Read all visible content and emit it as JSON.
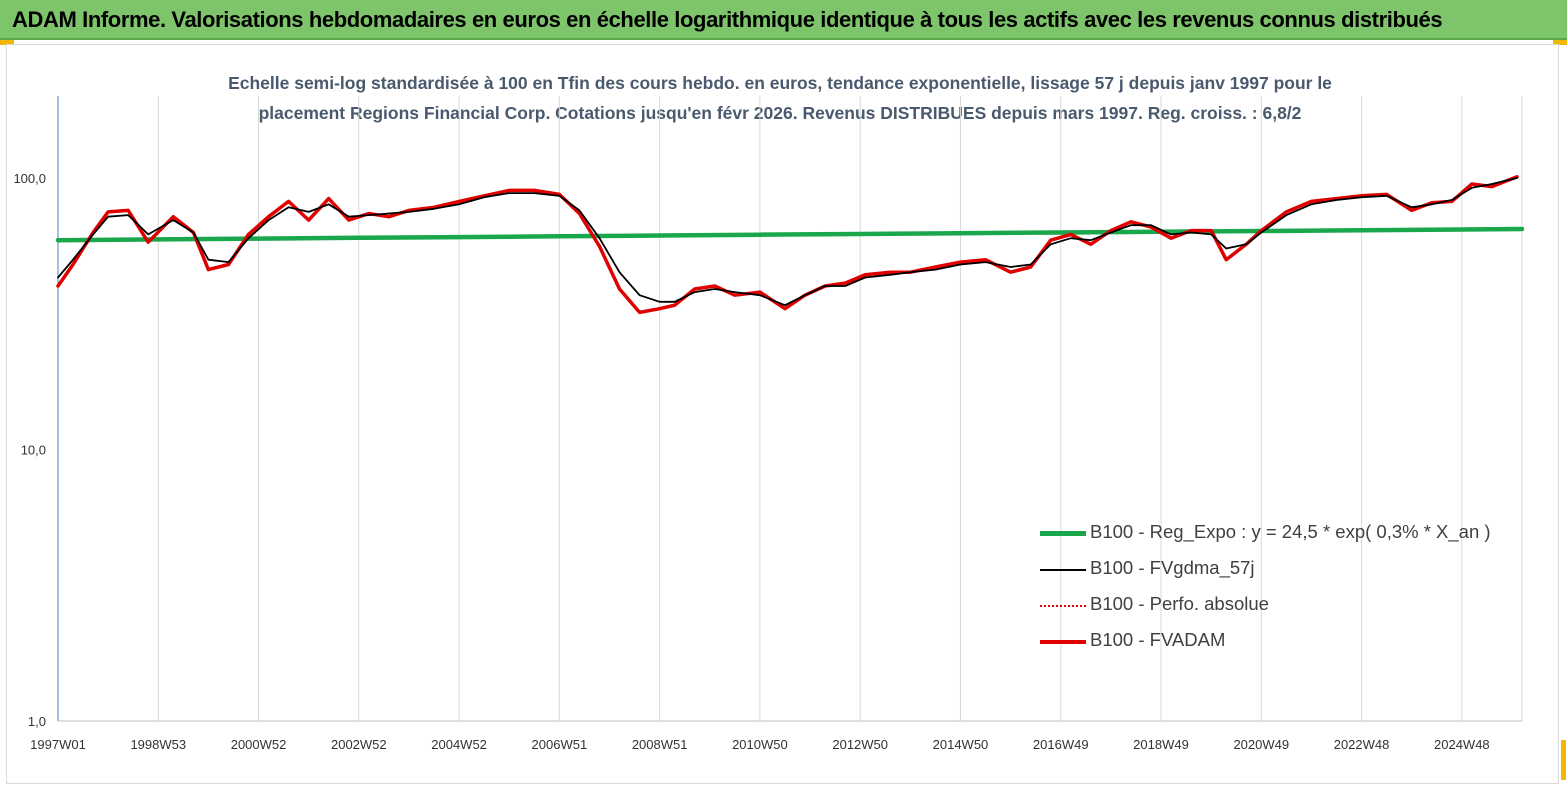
{
  "banner": {
    "title": "ADAM Informe. Valorisations hebdomadaires en euros en échelle logarithmique identique à tous les actifs avec les revenus connus distribués"
  },
  "colors": {
    "banner_bg": "#7dc46a",
    "corner_accent": "#f2b705",
    "reg_expo": "#1aa64a",
    "fvgdma": "#000000",
    "perfo": "#e00000",
    "fvadam": "#e00000",
    "grid": "#d9d9d9",
    "axis": "#4f81bd"
  },
  "chart_data": {
    "type": "line",
    "title_line1": "Echelle semi-log standardisée à 100 en Tfin des cours hebdo. en euros, tendance exponentielle, lissage 57 j depuis janv 1997 pour le",
    "title_line2": "placement Regions Financial Corp. Cotations jusqu'en févr 2026. Revenus DISTRIBUES depuis mars 1997. Reg. croiss. : 6,8/2",
    "y_scale": "log",
    "ylim": [
      1,
      200
    ],
    "y_ticks": [
      {
        "value": 1,
        "label": "1,0"
      },
      {
        "value": 10,
        "label": "10,0"
      },
      {
        "value": 100,
        "label": "100,0"
      }
    ],
    "xlim": [
      1997.0,
      2026.2
    ],
    "x_ticks": [
      {
        "value": 1997.0,
        "label": "1997W01"
      },
      {
        "value": 1999.0,
        "label": "1998W53"
      },
      {
        "value": 2001.0,
        "label": "2000W52"
      },
      {
        "value": 2003.0,
        "label": "2002W52"
      },
      {
        "value": 2005.0,
        "label": "2004W52"
      },
      {
        "value": 2007.0,
        "label": "2006W51"
      },
      {
        "value": 2009.0,
        "label": "2008W51"
      },
      {
        "value": 2011.0,
        "label": "2010W50"
      },
      {
        "value": 2013.0,
        "label": "2012W50"
      },
      {
        "value": 2015.0,
        "label": "2014W50"
      },
      {
        "value": 2017.0,
        "label": "2016W49"
      },
      {
        "value": 2019.0,
        "label": "2018W49"
      },
      {
        "value": 2021.0,
        "label": "2020W49"
      },
      {
        "value": 2023.0,
        "label": "2022W48"
      },
      {
        "value": 2025.0,
        "label": "2024W48"
      }
    ],
    "grid": "vertical",
    "legend_position": "bottom-right",
    "series": [
      {
        "name": "B100 - Reg_Expo : y = 24,5 *  exp( 0,3% *   X_an )",
        "style": "reg",
        "x": [
          1997.0,
          1999.0,
          2001.0,
          2003.0,
          2005.0,
          2007.0,
          2009.0,
          2011.0,
          2013.0,
          2015.0,
          2017.0,
          2019.0,
          2021.0,
          2023.0,
          2025.0,
          2026.2
        ],
        "values": [
          59,
          59.4,
          59.8,
          60.2,
          60.6,
          61,
          61.4,
          61.8,
          62.2,
          62.6,
          63,
          63.4,
          63.8,
          64.2,
          64.6,
          64.9
        ]
      },
      {
        "name": "B100 - FVgdma_57j",
        "style": "smooth",
        "x": [
          1997.0,
          1997.3,
          1997.7,
          1998.0,
          1998.4,
          1998.8,
          1999.3,
          1999.7,
          2000.0,
          2000.4,
          2000.8,
          2001.2,
          2001.6,
          2002.0,
          2002.4,
          2002.8,
          2003.2,
          2003.6,
          2004.0,
          2004.5,
          2005.0,
          2005.5,
          2006.0,
          2006.5,
          2007.0,
          2007.4,
          2007.8,
          2008.2,
          2008.6,
          2009.0,
          2009.3,
          2009.7,
          2010.1,
          2010.5,
          2011.0,
          2011.5,
          2011.9,
          2012.3,
          2012.7,
          2013.1,
          2013.6,
          2014.0,
          2014.5,
          2015.0,
          2015.5,
          2016.0,
          2016.4,
          2016.8,
          2017.2,
          2017.6,
          2018.0,
          2018.4,
          2018.8,
          2019.2,
          2019.6,
          2020.0,
          2020.3,
          2020.7,
          2021.0,
          2021.5,
          2022.0,
          2022.5,
          2023.0,
          2023.5,
          2024.0,
          2024.4,
          2024.8,
          2025.2,
          2025.6,
          2026.1
        ],
        "values": [
          43,
          50,
          62,
          72,
          73,
          62,
          70,
          63,
          50,
          49,
          60,
          70,
          78,
          75,
          80,
          72,
          73,
          74,
          75,
          77,
          80,
          85,
          88,
          88,
          86,
          76,
          60,
          45,
          37,
          35,
          35,
          38,
          39,
          38,
          37,
          34,
          37,
          40,
          40,
          43,
          44,
          45,
          46,
          48,
          49,
          47,
          48,
          57,
          60,
          59,
          63,
          67,
          67,
          62,
          63,
          62,
          55,
          57,
          63,
          73,
          80,
          83,
          85,
          86,
          78,
          80,
          83,
          92,
          95,
          100
        ]
      },
      {
        "name": "B100 - Perfo. absolue",
        "style": "perfo",
        "x": [
          1997.0,
          1997.3,
          1997.7,
          1998.0,
          1998.4,
          1998.8,
          1999.3,
          1999.7,
          2000.0,
          2000.4,
          2000.8,
          2001.2,
          2001.6,
          2002.0,
          2002.4,
          2002.8,
          2003.2,
          2003.6,
          2004.0,
          2004.5,
          2005.0,
          2005.5,
          2006.0,
          2006.5,
          2007.0,
          2007.4,
          2007.8,
          2008.2,
          2008.6,
          2009.0,
          2009.3,
          2009.7,
          2010.1,
          2010.5,
          2011.0,
          2011.5,
          2011.9,
          2012.3,
          2012.7,
          2013.1,
          2013.6,
          2014.0,
          2014.5,
          2015.0,
          2015.5,
          2016.0,
          2016.4,
          2016.8,
          2017.2,
          2017.6,
          2018.0,
          2018.4,
          2018.8,
          2019.2,
          2019.6,
          2020.0,
          2020.3,
          2020.7,
          2021.0,
          2021.5,
          2022.0,
          2022.5,
          2023.0,
          2023.5,
          2024.0,
          2024.4,
          2024.8,
          2025.2,
          2025.6,
          2026.1
        ],
        "values": [
          40,
          48,
          63,
          75,
          76,
          58,
          72,
          63,
          46,
          48,
          62,
          72,
          82,
          70,
          84,
          70,
          74,
          72,
          76,
          78,
          82,
          86,
          90,
          90,
          87,
          74,
          56,
          39,
          32,
          33,
          34,
          39,
          40,
          37,
          38,
          33,
          37,
          40,
          41,
          44,
          45,
          45,
          47,
          49,
          50,
          45,
          47,
          59,
          62,
          57,
          64,
          69,
          66,
          60,
          64,
          64,
          50,
          57,
          64,
          75,
          82,
          84,
          86,
          87,
          76,
          81,
          82,
          95,
          93,
          101
        ]
      },
      {
        "name": "B100 - FVADAM",
        "style": "adam",
        "x": [
          1997.0,
          1997.3,
          1997.7,
          1998.0,
          1998.4,
          1998.8,
          1999.3,
          1999.7,
          2000.0,
          2000.4,
          2000.8,
          2001.2,
          2001.6,
          2002.0,
          2002.4,
          2002.8,
          2003.2,
          2003.6,
          2004.0,
          2004.5,
          2005.0,
          2005.5,
          2006.0,
          2006.5,
          2007.0,
          2007.4,
          2007.8,
          2008.2,
          2008.6,
          2009.0,
          2009.3,
          2009.7,
          2010.1,
          2010.5,
          2011.0,
          2011.5,
          2011.9,
          2012.3,
          2012.7,
          2013.1,
          2013.6,
          2014.0,
          2014.5,
          2015.0,
          2015.5,
          2016.0,
          2016.4,
          2016.8,
          2017.2,
          2017.6,
          2018.0,
          2018.4,
          2018.8,
          2019.2,
          2019.6,
          2020.0,
          2020.3,
          2020.7,
          2021.0,
          2021.5,
          2022.0,
          2022.5,
          2023.0,
          2023.5,
          2024.0,
          2024.4,
          2024.8,
          2025.2,
          2025.6,
          2026.1
        ],
        "values": [
          40,
          48,
          63,
          75,
          76,
          58,
          72,
          63,
          46,
          48,
          62,
          72,
          82,
          70,
          84,
          70,
          74,
          72,
          76,
          78,
          82,
          86,
          90,
          90,
          87,
          74,
          56,
          39,
          32,
          33,
          34,
          39,
          40,
          37,
          38,
          33,
          37,
          40,
          41,
          44,
          45,
          45,
          47,
          49,
          50,
          45,
          47,
          59,
          62,
          57,
          64,
          69,
          66,
          60,
          64,
          64,
          50,
          57,
          64,
          75,
          82,
          84,
          86,
          87,
          76,
          81,
          82,
          95,
          93,
          101
        ]
      }
    ]
  }
}
